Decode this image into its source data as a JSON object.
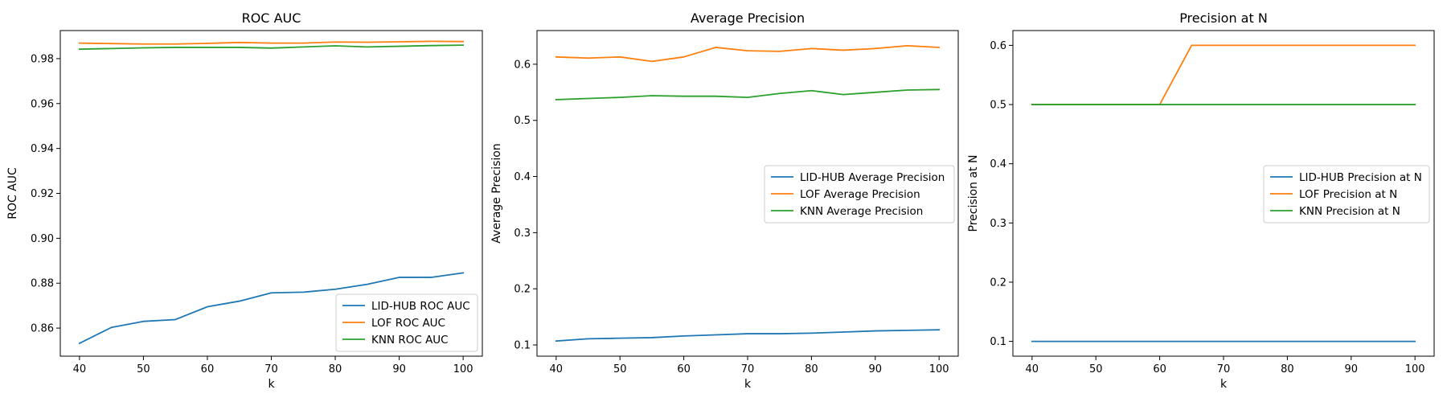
{
  "figure": {
    "background": "#ffffff"
  },
  "chart_data": [
    {
      "type": "line",
      "title": "ROC AUC",
      "xlabel": "k",
      "ylabel": "ROC AUC",
      "xlim": [
        37,
        103
      ],
      "ylim": [
        0.8475,
        0.9925
      ],
      "xticks": [
        40,
        50,
        60,
        70,
        80,
        90,
        100
      ],
      "yticks": [
        0.86,
        0.88,
        0.9,
        0.92,
        0.94,
        0.96,
        0.98
      ],
      "ytick_labels": [
        "0.86",
        "0.88",
        "0.90",
        "0.92",
        "0.94",
        "0.96",
        "0.98"
      ],
      "legend_position": "lower right",
      "x": [
        40,
        45,
        50,
        55,
        60,
        65,
        70,
        75,
        80,
        85,
        90,
        95,
        100
      ],
      "series": [
        {
          "name": "LID-HUB ROC AUC",
          "color": "#1f77b4",
          "values": [
            0.8532,
            0.8603,
            0.863,
            0.8638,
            0.8695,
            0.872,
            0.8757,
            0.876,
            0.8773,
            0.8795,
            0.8826,
            0.8826,
            0.8846
          ]
        },
        {
          "name": "LOF ROC AUC",
          "color": "#ff7f0e",
          "values": [
            0.9869,
            0.9867,
            0.9865,
            0.9865,
            0.9868,
            0.9872,
            0.9869,
            0.9869,
            0.9874,
            0.9873,
            0.9875,
            0.9877,
            0.9876
          ]
        },
        {
          "name": "KNN ROC AUC",
          "color": "#2ca02c",
          "values": [
            0.9842,
            0.9845,
            0.9848,
            0.985,
            0.985,
            0.985,
            0.9847,
            0.9852,
            0.9857,
            0.9852,
            0.9855,
            0.9858,
            0.986
          ]
        }
      ]
    },
    {
      "type": "line",
      "title": "Average Precision",
      "xlabel": "k",
      "ylabel": "Average Precision",
      "xlim": [
        37,
        103
      ],
      "ylim": [
        0.08,
        0.66
      ],
      "xticks": [
        40,
        50,
        60,
        70,
        80,
        90,
        100
      ],
      "yticks": [
        0.1,
        0.2,
        0.3,
        0.4,
        0.5,
        0.6
      ],
      "ytick_labels": [
        "0.1",
        "0.2",
        "0.3",
        "0.4",
        "0.5",
        "0.6"
      ],
      "legend_position": "center right",
      "x": [
        40,
        45,
        50,
        55,
        60,
        65,
        70,
        75,
        80,
        85,
        90,
        95,
        100
      ],
      "series": [
        {
          "name": "LID-HUB Average Precision",
          "color": "#1f77b4",
          "values": [
            0.107,
            0.111,
            0.112,
            0.113,
            0.116,
            0.118,
            0.12,
            0.12,
            0.121,
            0.123,
            0.125,
            0.126,
            0.127
          ]
        },
        {
          "name": "LOF Average Precision",
          "color": "#ff7f0e",
          "values": [
            0.613,
            0.611,
            0.613,
            0.605,
            0.613,
            0.63,
            0.624,
            0.623,
            0.628,
            0.625,
            0.628,
            0.633,
            0.63
          ]
        },
        {
          "name": "KNN Average Precision",
          "color": "#2ca02c",
          "values": [
            0.537,
            0.539,
            0.541,
            0.544,
            0.543,
            0.543,
            0.541,
            0.548,
            0.553,
            0.546,
            0.55,
            0.554,
            0.555
          ]
        }
      ]
    },
    {
      "type": "line",
      "title": "Precision at N",
      "xlabel": "k",
      "ylabel": "Precision at N",
      "xlim": [
        37,
        103
      ],
      "ylim": [
        0.075,
        0.625
      ],
      "xticks": [
        40,
        50,
        60,
        70,
        80,
        90,
        100
      ],
      "yticks": [
        0.1,
        0.2,
        0.3,
        0.4,
        0.5,
        0.6
      ],
      "ytick_labels": [
        "0.1",
        "0.2",
        "0.3",
        "0.4",
        "0.5",
        "0.6"
      ],
      "legend_position": "center right",
      "x": [
        40,
        45,
        50,
        55,
        60,
        65,
        70,
        75,
        80,
        85,
        90,
        95,
        100
      ],
      "series": [
        {
          "name": "LID-HUB Precision at N",
          "color": "#1f77b4",
          "values": [
            0.1,
            0.1,
            0.1,
            0.1,
            0.1,
            0.1,
            0.1,
            0.1,
            0.1,
            0.1,
            0.1,
            0.1,
            0.1
          ]
        },
        {
          "name": "LOF Precision at N",
          "color": "#ff7f0e",
          "values": [
            0.5,
            0.5,
            0.5,
            0.5,
            0.5,
            0.6,
            0.6,
            0.6,
            0.6,
            0.6,
            0.6,
            0.6,
            0.6
          ]
        },
        {
          "name": "KNN Precision at N",
          "color": "#2ca02c",
          "values": [
            0.5,
            0.5,
            0.5,
            0.5,
            0.5,
            0.5,
            0.5,
            0.5,
            0.5,
            0.5,
            0.5,
            0.5,
            0.5
          ]
        }
      ]
    }
  ]
}
